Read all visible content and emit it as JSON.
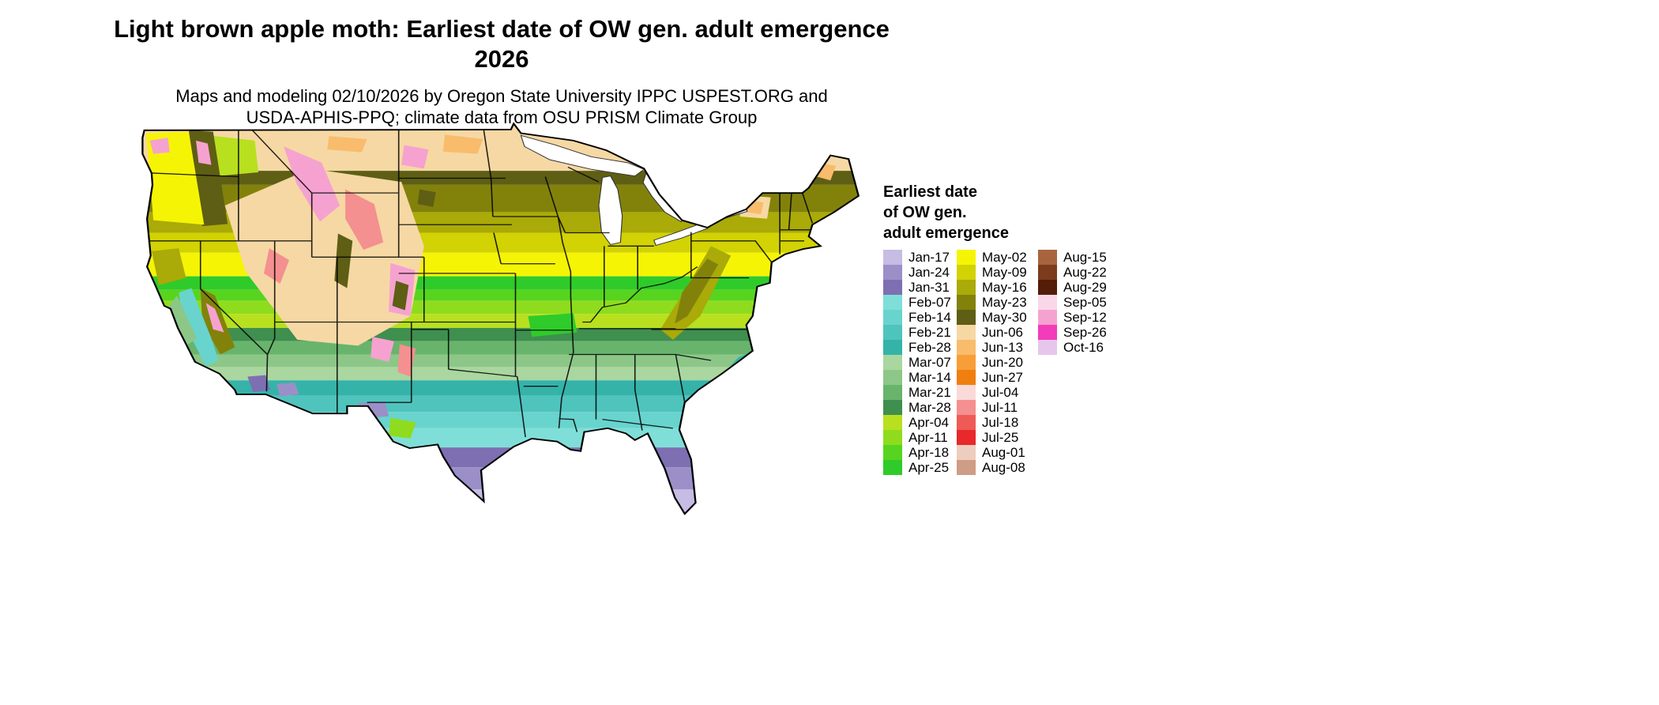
{
  "header": {
    "title_line1": "Light brown apple moth: Earliest date of OW gen. adult emergence",
    "title_line2": "2026",
    "subtitle_line1": "Maps and modeling 02/10/2026 by Oregon State University IPPC USPEST.ORG and",
    "subtitle_line2": "USDA-APHIS-PPQ; climate data from OSU PRISM Climate Group"
  },
  "legend": {
    "title_lines": [
      "Earliest date",
      "of OW gen.",
      "adult emergence"
    ],
    "columns": [
      [
        {
          "label": "Jan-17",
          "key": "jan17"
        },
        {
          "label": "Jan-24",
          "key": "jan24"
        },
        {
          "label": "Jan-31",
          "key": "jan31"
        },
        {
          "label": "Feb-07",
          "key": "feb07"
        },
        {
          "label": "Feb-14",
          "key": "feb14"
        },
        {
          "label": "Feb-21",
          "key": "feb21"
        },
        {
          "label": "Feb-28",
          "key": "feb28"
        },
        {
          "label": "Mar-07",
          "key": "mar07"
        },
        {
          "label": "Mar-14",
          "key": "mar14"
        },
        {
          "label": "Mar-21",
          "key": "mar21"
        },
        {
          "label": "Mar-28",
          "key": "mar28"
        },
        {
          "label": "Apr-04",
          "key": "apr04"
        },
        {
          "label": "Apr-11",
          "key": "apr11"
        },
        {
          "label": "Apr-18",
          "key": "apr18"
        },
        {
          "label": "Apr-25",
          "key": "apr25"
        }
      ],
      [
        {
          "label": "May-02",
          "key": "may02"
        },
        {
          "label": "May-09",
          "key": "may09"
        },
        {
          "label": "May-16",
          "key": "may16"
        },
        {
          "label": "May-23",
          "key": "may23"
        },
        {
          "label": "May-30",
          "key": "may30"
        },
        {
          "label": "Jun-06",
          "key": "jun06"
        },
        {
          "label": "Jun-13",
          "key": "jun13"
        },
        {
          "label": "Jun-20",
          "key": "jun20"
        },
        {
          "label": "Jun-27",
          "key": "jun27"
        },
        {
          "label": "Jul-04",
          "key": "jul04"
        },
        {
          "label": "Jul-11",
          "key": "jul11"
        },
        {
          "label": "Jul-18",
          "key": "jul18"
        },
        {
          "label": "Jul-25",
          "key": "jul25"
        },
        {
          "label": "Aug-01",
          "key": "aug01"
        },
        {
          "label": "Aug-08",
          "key": "aug08"
        }
      ],
      [
        {
          "label": "Aug-15",
          "key": "aug15"
        },
        {
          "label": "Aug-22",
          "key": "aug22"
        },
        {
          "label": "Aug-29",
          "key": "aug29"
        },
        {
          "label": "Sep-05",
          "key": "sep05"
        },
        {
          "label": "Sep-12",
          "key": "sep12"
        },
        {
          "label": "Sep-26",
          "key": "sep26"
        },
        {
          "label": "Oct-16",
          "key": "oct16"
        }
      ]
    ]
  },
  "palette": {
    "jan17": "#c6bce4",
    "jan24": "#9b8fc8",
    "jan31": "#7e6fb2",
    "feb07": "#7fdfd8",
    "feb14": "#68d4cd",
    "feb21": "#4fc4bd",
    "feb28": "#35b3a9",
    "mar07": "#aad6a0",
    "mar14": "#8cc788",
    "mar21": "#68b46c",
    "mar28": "#3f8f4f",
    "apr04": "#b8e01e",
    "apr11": "#8fdc1e",
    "apr18": "#57d41f",
    "apr25": "#2fcb2a",
    "may02": "#f6f405",
    "may09": "#d2d204",
    "may16": "#aaaa08",
    "may23": "#82820b",
    "may30": "#5e5e14",
    "jun06": "#f6d8a4",
    "jun13": "#f8bc6c",
    "jun20": "#f89e38",
    "jun27": "#f07f10",
    "jul04": "#fad9d9",
    "jul11": "#f4908f",
    "jul18": "#ee5a56",
    "jul25": "#e8282a",
    "aug01": "#edcdbe",
    "aug08": "#cf9c86",
    "aug15": "#a8643e",
    "aug22": "#7c3b1c",
    "aug29": "#531d07",
    "sep05": "#fad7e8",
    "sep12": "#f6a2d0",
    "sep26": "#f23cba",
    "oct16": "#e7c6ec"
  }
}
